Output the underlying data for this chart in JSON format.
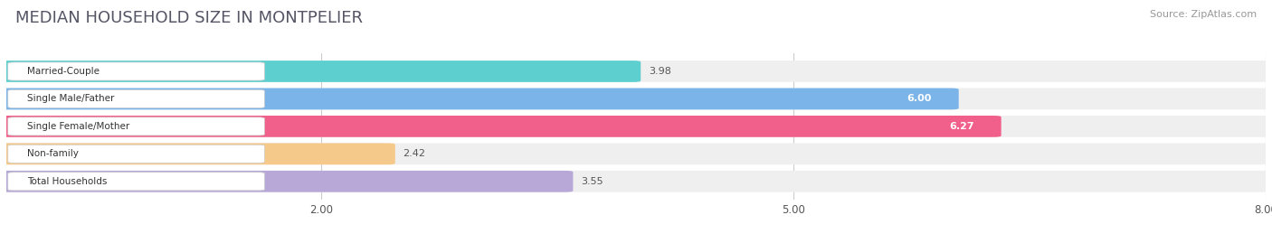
{
  "title": "MEDIAN HOUSEHOLD SIZE IN MONTPELIER",
  "source": "Source: ZipAtlas.com",
  "categories": [
    "Married-Couple",
    "Single Male/Father",
    "Single Female/Mother",
    "Non-family",
    "Total Households"
  ],
  "values": [
    3.98,
    6.0,
    6.27,
    2.42,
    3.55
  ],
  "bar_colors": [
    "#5ecfcf",
    "#7ab4e8",
    "#f0608a",
    "#f5c98a",
    "#b8a8d8"
  ],
  "bar_bg_color": "#efefef",
  "label_inside": [
    false,
    true,
    true,
    false,
    false
  ],
  "xlim": [
    0,
    8.0
  ],
  "xticks": [
    2.0,
    5.0,
    8.0
  ],
  "figsize": [
    14.06,
    2.69
  ],
  "dpi": 100,
  "title_fontsize": 13,
  "bar_height": 0.68,
  "background_color": "#ffffff",
  "grid_color": "#cccccc",
  "title_color": "#555566",
  "source_color": "#999999",
  "value_label_outside_color": "#555555",
  "value_label_inside_color": "#ffffff",
  "cat_label_color": "#333333"
}
